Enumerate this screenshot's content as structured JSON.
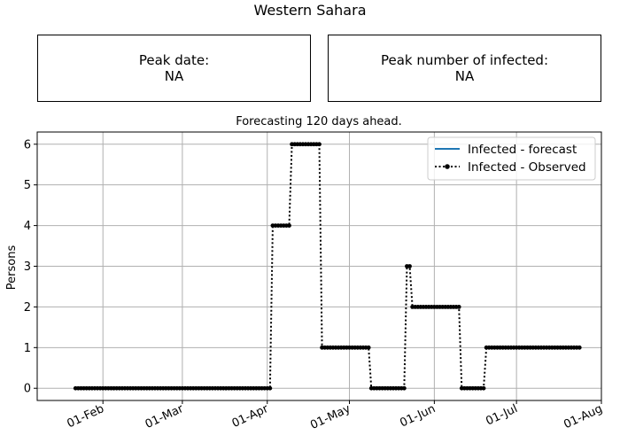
{
  "page_title": "Western Sahara",
  "peak_date": {
    "label": "Peak date:",
    "value": "NA"
  },
  "peak_infected": {
    "label": "Peak number of infected:",
    "value": "NA"
  },
  "colors": {
    "forecast": "#1f77b4",
    "observed": "#000000",
    "grid": "#b0b0b0"
  },
  "chart_data": {
    "type": "line",
    "title": "Forecasting 120 days ahead.",
    "xlabel": "",
    "ylabel": "Persons",
    "x_type": "date",
    "xlim": [
      "2020-01-08",
      "2020-08-01"
    ],
    "ylim": [
      -0.3,
      6.3
    ],
    "x_ticks": [
      "2020-02-01",
      "2020-03-01",
      "2020-04-01",
      "2020-05-01",
      "2020-06-01",
      "2020-07-01",
      "2020-08-01"
    ],
    "x_tick_labels": [
      "01-Feb",
      "01-Mar",
      "01-Apr",
      "01-May",
      "01-Jun",
      "01-Jul",
      "01-Aug"
    ],
    "y_ticks": [
      0,
      1,
      2,
      3,
      4,
      5,
      6
    ],
    "grid": true,
    "legend_position": "top-right",
    "series": [
      {
        "name": "Infected - forecast",
        "style": "solid line",
        "points": []
      },
      {
        "name": "Infected - Observed",
        "style": "dotted line with circle markers",
        "points": [
          [
            "2020-01-22",
            0
          ],
          [
            "2020-04-02",
            0
          ],
          [
            "2020-04-03",
            4
          ],
          [
            "2020-04-09",
            4
          ],
          [
            "2020-04-10",
            6
          ],
          [
            "2020-04-20",
            6
          ],
          [
            "2020-04-21",
            1
          ],
          [
            "2020-05-08",
            1
          ],
          [
            "2020-05-09",
            0
          ],
          [
            "2020-05-21",
            0
          ],
          [
            "2020-05-22",
            3
          ],
          [
            "2020-05-23",
            3
          ],
          [
            "2020-05-24",
            2
          ],
          [
            "2020-06-10",
            2
          ],
          [
            "2020-06-11",
            0
          ],
          [
            "2020-06-19",
            0
          ],
          [
            "2020-06-20",
            1
          ],
          [
            "2020-07-24",
            1
          ]
        ]
      }
    ]
  }
}
